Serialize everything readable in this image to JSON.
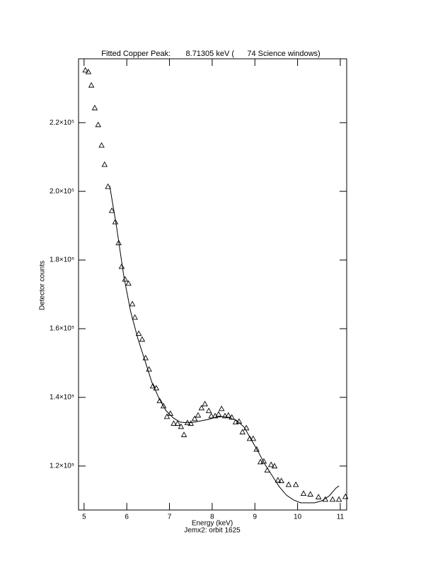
{
  "chart_data": {
    "type": "scatter",
    "title": "Fitted Copper Peak:       8.71305 keV (      74 Science windows)",
    "x_label": "Energy (keV)",
    "subtitle": "Jemx2: orbit 1625",
    "y_label": "Detector counts",
    "marker": "triangle",
    "color": "#000000",
    "x": [
      5.03,
      5.1,
      5.17,
      5.25,
      5.33,
      5.41,
      5.48,
      5.56,
      5.65,
      5.73,
      5.81,
      5.88,
      5.96,
      6.04,
      6.13,
      6.19,
      6.28,
      6.36,
      6.44,
      6.52,
      6.61,
      6.69,
      6.77,
      6.86,
      6.94,
      7.02,
      7.1,
      7.19,
      7.27,
      7.34,
      7.42,
      7.5,
      7.59,
      7.67,
      7.75,
      7.83,
      7.92,
      7.98,
      8.07,
      8.15,
      8.22,
      8.3,
      8.38,
      8.46,
      8.55,
      8.63,
      8.71,
      8.8,
      8.88,
      8.96,
      9.04,
      9.13,
      9.21,
      9.29,
      9.38,
      9.46,
      9.54,
      9.62,
      9.79,
      9.96,
      10.14,
      10.3,
      10.49,
      10.65,
      10.82,
      10.97,
      11.12
    ],
    "values": [
      235300,
      234800,
      230900,
      224300,
      219400,
      213400,
      207800,
      201400,
      194400,
      191100,
      185000,
      178100,
      174400,
      173200,
      167200,
      163300,
      158600,
      156900,
      151500,
      148200,
      143300,
      142700,
      139000,
      137500,
      134400,
      135300,
      132400,
      132400,
      131500,
      129100,
      132600,
      132400,
      133800,
      134800,
      136900,
      138100,
      136100,
      134600,
      134600,
      135100,
      136700,
      134600,
      134800,
      134200,
      132800,
      133000,
      129900,
      131100,
      128000,
      128000,
      124900,
      121200,
      121400,
      118800,
      120400,
      120000,
      115900,
      115700,
      114600,
      114600,
      112000,
      111800,
      111000,
      110300,
      110300,
      110300,
      111100
    ],
    "fit_x": [
      5.6,
      5.76,
      5.93,
      6.09,
      6.26,
      6.43,
      6.59,
      6.76,
      6.92,
      7.09,
      7.25,
      7.42,
      7.59,
      7.75,
      7.92,
      8.08,
      8.25,
      8.41,
      8.58,
      8.75,
      8.91,
      9.08,
      9.24,
      9.41,
      9.57,
      9.74,
      9.91,
      10.07,
      10.24,
      10.4,
      10.57,
      10.74,
      10.9,
      10.97
    ],
    "fit_values": [
      201600,
      189700,
      175300,
      165000,
      157100,
      150500,
      144300,
      139600,
      136100,
      134000,
      132800,
      132600,
      132800,
      133200,
      133600,
      134200,
      134400,
      134000,
      133200,
      131300,
      127800,
      124100,
      120400,
      117100,
      114000,
      111500,
      110100,
      109300,
      109300,
      109300,
      109900,
      111300,
      113600,
      114200
    ],
    "xlim": [
      4.87,
      11.15
    ],
    "ylim": [
      107200,
      238600
    ],
    "xticks": [
      5,
      6,
      7,
      8,
      9,
      10,
      11
    ],
    "yticks": [
      {
        "value": 120000,
        "label": "1.2×10⁵"
      },
      {
        "value": 140000,
        "label": "1.4×10⁵"
      },
      {
        "value": 160000,
        "label": "1.6×10⁵"
      },
      {
        "value": 180000,
        "label": "1.8×10⁵"
      },
      {
        "value": 200000,
        "label": "2.0×10⁵"
      },
      {
        "value": 220000,
        "label": "2.2×10⁵"
      }
    ]
  }
}
